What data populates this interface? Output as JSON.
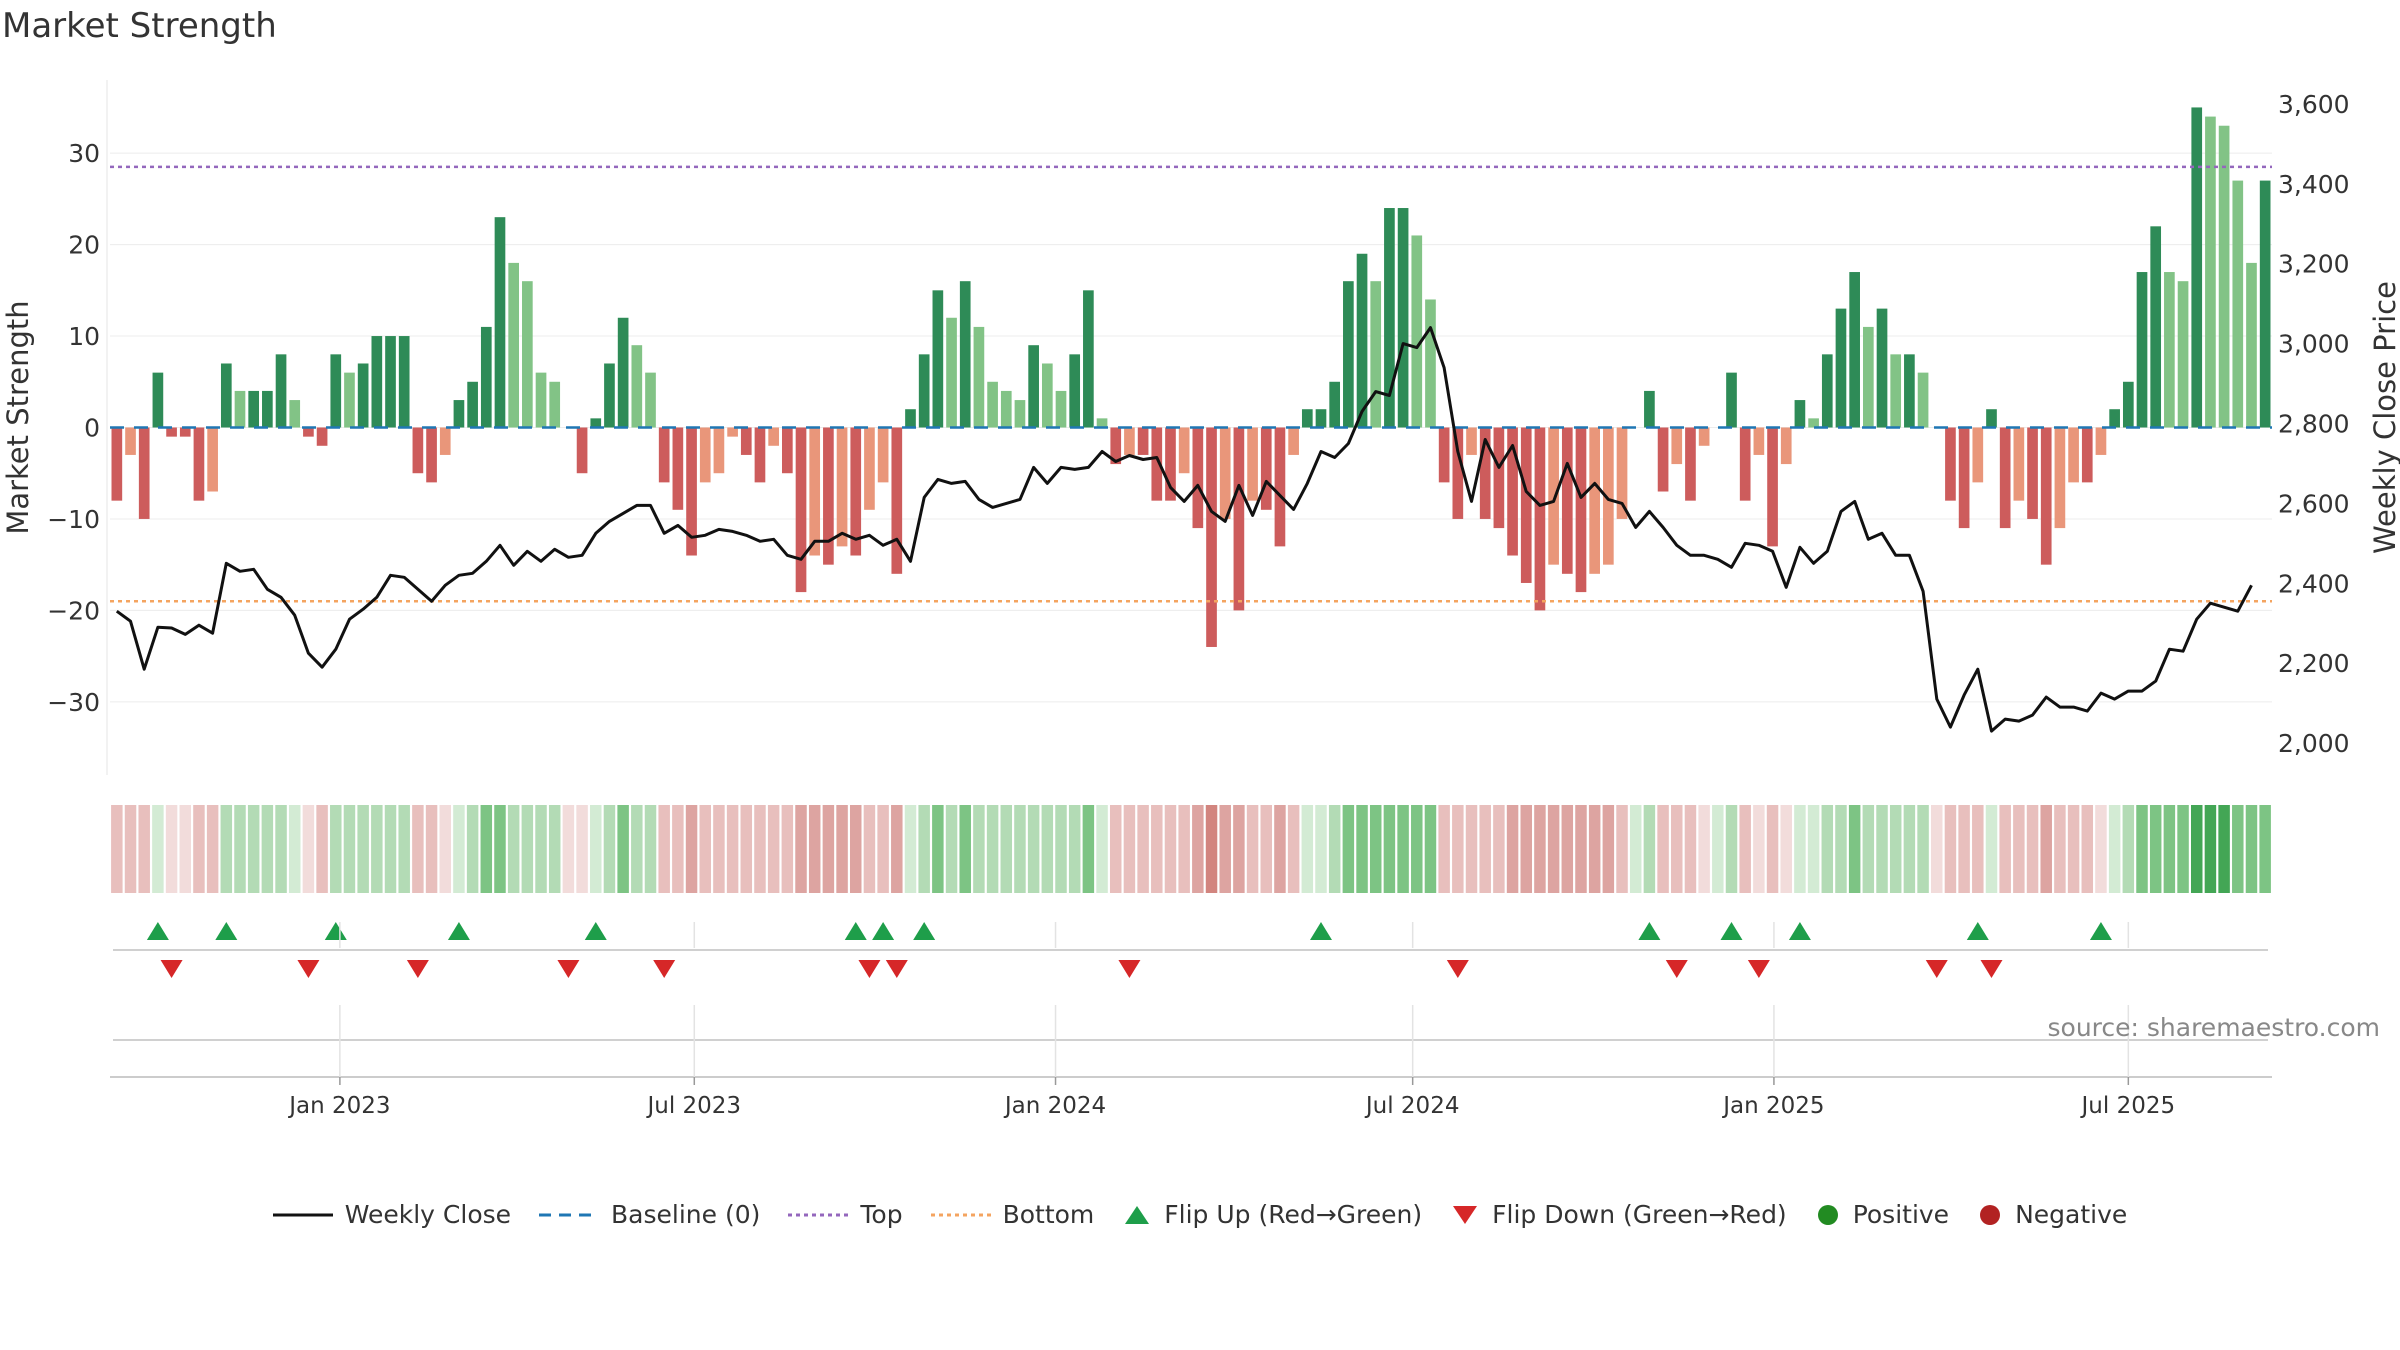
{
  "title": "Market Strength",
  "source": "source: sharemaestro.com",
  "chart_data": {
    "type": "bar",
    "title": "Market Strength",
    "ylabel_left": "Market Strength",
    "ylabel_right": "Weekly Close Price",
    "ylim_left": [
      -38,
      38
    ],
    "ylim_right": [
      1920,
      3660
    ],
    "yticks_left": [
      30,
      20,
      10,
      0,
      -10,
      -20,
      -30
    ],
    "yticks_left_labels": [
      "30",
      "20",
      "10",
      "0",
      "−10",
      "−20",
      "−30"
    ],
    "yticks_right": [
      3600,
      3400,
      3200,
      3000,
      2800,
      2600,
      2400,
      2200,
      2000
    ],
    "yticks_right_labels": [
      "3,600",
      "3,400",
      "3,200",
      "3,000",
      "2,800",
      "2,600",
      "2,400",
      "2,200",
      "2,000"
    ],
    "x_week_range": [
      0,
      157
    ],
    "x_ticks": [
      {
        "label": "Jan 2023",
        "week": 16.3
      },
      {
        "label": "Jul 2023",
        "week": 42.2
      },
      {
        "label": "Jan 2024",
        "week": 68.6
      },
      {
        "label": "Jul 2024",
        "week": 94.7
      },
      {
        "label": "Jan 2025",
        "week": 121.1
      },
      {
        "label": "Jul 2025",
        "week": 147.0
      }
    ],
    "top_level": 28.5,
    "bottom_level": -19,
    "strength": [
      -8,
      -3,
      -10,
      6,
      -1,
      -1,
      -8,
      -7,
      7,
      4,
      4,
      4,
      8,
      3,
      -1,
      -2,
      8,
      6,
      7,
      10,
      10,
      10,
      -5,
      -6,
      -3,
      3,
      5,
      11,
      23,
      18,
      16,
      6,
      5,
      0,
      -5,
      1,
      7,
      12,
      9,
      6,
      -6,
      -9,
      -14,
      -6,
      -5,
      -1,
      -3,
      -6,
      -2,
      -5,
      -18,
      -14,
      -15,
      -13,
      -14,
      -9,
      -6,
      -16,
      2,
      8,
      15,
      12,
      16,
      11,
      5,
      4,
      3,
      9,
      7,
      4,
      8,
      15,
      1,
      -4,
      -3,
      -3,
      -8,
      -8,
      -5,
      -11,
      -24,
      -10,
      -20,
      -8,
      -9,
      -13,
      -3,
      2,
      2,
      5,
      16,
      19,
      16,
      24,
      24,
      21,
      14,
      -6,
      -10,
      -3,
      -10,
      -11,
      -14,
      -17,
      -20,
      -15,
      -16,
      -18,
      -16,
      -15,
      -10,
      0,
      4,
      -7,
      -4,
      -8,
      -2,
      0,
      6,
      -8,
      -3,
      -13,
      -4,
      3,
      1,
      8,
      13,
      17,
      11,
      13,
      8,
      8,
      6,
      0,
      -8,
      -11,
      -6,
      2,
      -11,
      -8,
      -10,
      -15,
      -11,
      -6,
      -6,
      -3,
      2,
      5,
      17,
      22,
      17,
      16,
      35,
      34,
      33,
      27,
      18,
      27
    ],
    "weekly_close": [
      2330,
      2305,
      2185,
      2290,
      2288,
      2272,
      2295,
      2275,
      2450,
      2430,
      2435,
      2385,
      2365,
      2320,
      2225,
      2190,
      2235,
      2310,
      2335,
      2365,
      2420,
      2415,
      2385,
      2355,
      2395,
      2420,
      2425,
      2455,
      2495,
      2445,
      2480,
      2455,
      2485,
      2465,
      2470,
      2525,
      2555,
      2575,
      2595,
      2595,
      2525,
      2545,
      2515,
      2520,
      2535,
      2530,
      2520,
      2505,
      2510,
      2470,
      2460,
      2505,
      2505,
      2525,
      2510,
      2520,
      2495,
      2510,
      2455,
      2615,
      2660,
      2650,
      2655,
      2610,
      2590,
      2600,
      2610,
      2690,
      2650,
      2690,
      2685,
      2690,
      2730,
      2705,
      2720,
      2710,
      2715,
      2640,
      2605,
      2645,
      2580,
      2555,
      2645,
      2570,
      2655,
      2620,
      2585,
      2650,
      2730,
      2715,
      2750,
      2830,
      2880,
      2870,
      3000,
      2990,
      3040,
      2940,
      2730,
      2605,
      2760,
      2690,
      2745,
      2630,
      2595,
      2605,
      2700,
      2615,
      2650,
      2610,
      2600,
      2540,
      2580,
      2540,
      2495,
      2470,
      2470,
      2460,
      2440,
      2500,
      2495,
      2480,
      2390,
      2490,
      2450,
      2480,
      2580,
      2605,
      2510,
      2525,
      2470,
      2470,
      2380,
      2110,
      2040,
      2120,
      2185,
      2030,
      2060,
      2055,
      2070,
      2115,
      2090,
      2090,
      2080,
      2125,
      2110,
      2130,
      2130,
      2155,
      2235,
      2230,
      2310,
      2350,
      2340,
      2330,
      2395
    ],
    "color_strip": [
      -2,
      -2,
      -2,
      1,
      -1,
      -1,
      -2,
      -2,
      2,
      2,
      2,
      2,
      2,
      1,
      -1,
      -2,
      2,
      2,
      2,
      2,
      2,
      2,
      -2,
      -2,
      -1,
      1,
      2,
      3,
      3,
      2,
      2,
      2,
      2,
      -1,
      -1,
      1,
      2,
      3,
      2,
      2,
      -2,
      -2,
      -3,
      -2,
      -2,
      -2,
      -2,
      -2,
      -2,
      -2,
      -3,
      -3,
      -3,
      -3,
      -3,
      -2,
      -2,
      -3,
      1,
      2,
      3,
      2,
      3,
      2,
      2,
      2,
      2,
      2,
      2,
      2,
      2,
      3,
      1,
      -2,
      -2,
      -2,
      -2,
      -2,
      -2,
      -3,
      -4,
      -3,
      -3,
      -2,
      -2,
      -3,
      -2,
      1,
      1,
      2,
      3,
      3,
      3,
      3,
      3,
      3,
      3,
      -2,
      -2,
      -2,
      -2,
      -2,
      -3,
      -3,
      -3,
      -3,
      -3,
      -3,
      -3,
      -3,
      -2,
      1,
      2,
      -2,
      -2,
      -2,
      -1,
      1,
      2,
      -2,
      -1,
      -2,
      -1,
      1,
      1,
      2,
      2,
      3,
      2,
      2,
      2,
      2,
      2,
      -1,
      -2,
      -2,
      -2,
      1,
      -2,
      -2,
      -2,
      -3,
      -2,
      -2,
      -2,
      -1,
      1,
      2,
      3,
      3,
      3,
      3,
      4,
      4,
      4,
      3,
      3,
      3
    ],
    "flip_up_weeks": [
      3,
      8,
      16,
      25,
      35,
      54,
      56,
      59,
      88,
      112,
      118,
      123,
      136,
      145
    ],
    "flip_down_weeks": [
      4,
      14,
      22,
      33,
      40,
      55,
      57,
      74,
      98,
      114,
      120,
      133,
      137
    ],
    "legend": [
      "Weekly Close",
      "Baseline (0)",
      "Top",
      "Bottom",
      "Flip Up (Red→Green)",
      "Flip Down (Green→Red)",
      "Positive",
      "Negative"
    ]
  },
  "colors": {
    "green_dark": "#2e8b57",
    "green_light": "#82c386",
    "red_dark": "#cd5c5c",
    "red_light": "#e9967a",
    "line": "#111111",
    "baseline": "#1f77b4",
    "top": "#9467bd",
    "bottom": "#f4a460",
    "flip_up": "#1e9e4a",
    "flip_down": "#d62728",
    "positive": "#228b22",
    "negative": "#b22222"
  }
}
